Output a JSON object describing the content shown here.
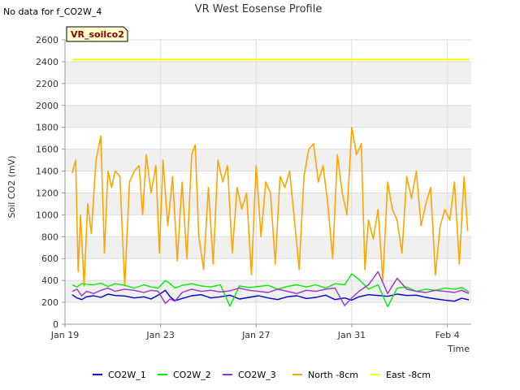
{
  "chart_data": {
    "type": "line",
    "title": "VR West Eosense Profile",
    "no_data_note": "No data for f_CO2W_4",
    "badge": "VR_soilco2",
    "xlabel": "Time",
    "ylabel": "Soil CO2 (mV)",
    "x_ticks": [
      "Jan 19",
      "Jan 23",
      "Jan 27",
      "Jan 31",
      "Feb 4"
    ],
    "x_tick_values": [
      19,
      23,
      27,
      31,
      35
    ],
    "xlim": [
      19.0,
      36.0
    ],
    "y_ticks": [
      0,
      200,
      400,
      600,
      800,
      1000,
      1200,
      1400,
      1600,
      1800,
      2000,
      2200,
      2400,
      2600
    ],
    "ylim": [
      0,
      2600
    ],
    "grid": true,
    "background_bands": "alternating grey / white",
    "legend_position": "bottom",
    "series": [
      {
        "name": "CO2W_1",
        "color": "#0000cc",
        "x": [
          19.3,
          19.5,
          19.7,
          19.9,
          20.2,
          20.5,
          20.8,
          21.1,
          21.5,
          21.9,
          22.3,
          22.6,
          22.9,
          23.2,
          23.4,
          23.6,
          23.9,
          24.3,
          24.7,
          25.1,
          25.5,
          25.9,
          26.3,
          26.7,
          27.1,
          27.5,
          27.9,
          28.3,
          28.7,
          29.1,
          29.5,
          29.9,
          30.3,
          30.7,
          31.0,
          31.3,
          31.7,
          32.1,
          32.5,
          32.9,
          33.3,
          33.7,
          34.1,
          34.5,
          34.9,
          35.3,
          35.6,
          35.9
        ],
        "y": [
          270,
          240,
          225,
          250,
          260,
          245,
          275,
          262,
          258,
          240,
          250,
          230,
          265,
          310,
          250,
          215,
          235,
          260,
          270,
          240,
          250,
          265,
          230,
          245,
          260,
          240,
          225,
          250,
          260,
          235,
          245,
          265,
          225,
          240,
          220,
          250,
          270,
          262,
          255,
          275,
          262,
          265,
          245,
          232,
          220,
          210,
          238,
          222
        ]
      },
      {
        "name": "CO2W_2",
        "color": "#00ee00",
        "x": [
          19.3,
          19.5,
          19.7,
          19.9,
          20.2,
          20.5,
          20.8,
          21.1,
          21.5,
          21.9,
          22.3,
          22.6,
          22.9,
          23.2,
          23.4,
          23.6,
          23.9,
          24.3,
          24.7,
          25.1,
          25.5,
          25.9,
          26.3,
          26.7,
          27.1,
          27.5,
          27.9,
          28.3,
          28.7,
          29.1,
          29.5,
          29.9,
          30.3,
          30.7,
          31.0,
          31.3,
          31.7,
          32.1,
          32.5,
          32.9,
          33.3,
          33.7,
          34.1,
          34.5,
          34.9,
          35.3,
          35.6,
          35.9
        ],
        "y": [
          360,
          340,
          370,
          365,
          360,
          375,
          345,
          370,
          355,
          330,
          360,
          340,
          330,
          400,
          370,
          330,
          355,
          370,
          350,
          340,
          360,
          165,
          350,
          335,
          345,
          355,
          320,
          345,
          360,
          340,
          360,
          330,
          370,
          360,
          460,
          410,
          320,
          360,
          160,
          330,
          340,
          300,
          320,
          310,
          330,
          320,
          335,
          295
        ]
      },
      {
        "name": "CO2W_3",
        "color": "#9933cc",
        "x": [
          19.3,
          19.5,
          19.7,
          19.9,
          20.2,
          20.5,
          20.8,
          21.1,
          21.5,
          21.9,
          22.3,
          22.6,
          22.9,
          23.2,
          23.4,
          23.6,
          23.9,
          24.3,
          24.7,
          25.1,
          25.5,
          25.9,
          26.3,
          26.7,
          27.1,
          27.5,
          27.9,
          28.3,
          28.7,
          29.1,
          29.5,
          29.9,
          30.3,
          30.7,
          31.0,
          31.3,
          31.7,
          32.1,
          32.5,
          32.9,
          33.3,
          33.7,
          34.1,
          34.5,
          34.9,
          35.3,
          35.6,
          35.9
        ],
        "y": [
          300,
          320,
          260,
          300,
          280,
          310,
          330,
          300,
          320,
          310,
          290,
          310,
          300,
          190,
          230,
          210,
          290,
          320,
          300,
          310,
          295,
          305,
          330,
          310,
          300,
          290,
          320,
          300,
          280,
          310,
          300,
          320,
          330,
          170,
          240,
          300,
          360,
          480,
          280,
          420,
          320,
          300,
          290,
          310,
          300,
          290,
          310,
          280
        ]
      },
      {
        "name": "North -8cm",
        "color": "#ffa500",
        "x": [
          19.3,
          19.45,
          19.55,
          19.65,
          19.8,
          19.95,
          20.1,
          20.3,
          20.5,
          20.65,
          20.8,
          20.95,
          21.1,
          21.3,
          21.5,
          21.7,
          21.9,
          22.1,
          22.25,
          22.4,
          22.6,
          22.8,
          22.95,
          23.1,
          23.3,
          23.5,
          23.7,
          23.9,
          24.1,
          24.3,
          24.45,
          24.6,
          24.8,
          25.0,
          25.2,
          25.4,
          25.6,
          25.8,
          26.0,
          26.2,
          26.4,
          26.6,
          26.8,
          27.0,
          27.2,
          27.4,
          27.6,
          27.8,
          28.0,
          28.2,
          28.4,
          28.6,
          28.8,
          29.0,
          29.2,
          29.4,
          29.6,
          29.8,
          30.0,
          30.2,
          30.4,
          30.6,
          30.8,
          31.0,
          31.2,
          31.4,
          31.55,
          31.7,
          31.9,
          32.1,
          32.3,
          32.5,
          32.7,
          32.9,
          33.1,
          33.3,
          33.5,
          33.7,
          33.9,
          34.1,
          34.3,
          34.5,
          34.7,
          34.9,
          35.1,
          35.3,
          35.5,
          35.7,
          35.85
        ],
        "y": [
          1380,
          1500,
          480,
          1000,
          350,
          1100,
          830,
          1500,
          1720,
          650,
          1400,
          1250,
          1400,
          1350,
          350,
          1300,
          1400,
          1450,
          1000,
          1550,
          1200,
          1450,
          650,
          1500,
          900,
          1350,
          580,
          1300,
          600,
          1550,
          1640,
          800,
          500,
          1250,
          550,
          1500,
          1300,
          1450,
          650,
          1250,
          1050,
          1200,
          450,
          1450,
          800,
          1300,
          1200,
          550,
          1350,
          1250,
          1400,
          950,
          500,
          1350,
          1600,
          1650,
          1300,
          1450,
          1100,
          600,
          1550,
          1200,
          1000,
          1800,
          1550,
          1650,
          500,
          950,
          780,
          1050,
          400,
          1300,
          1050,
          950,
          650,
          1350,
          1150,
          1400,
          900,
          1100,
          1250,
          450,
          900,
          1050,
          950,
          1300,
          550,
          1350,
          850
        ]
      },
      {
        "name": "East -8cm",
        "color": "#ffff00",
        "x": [
          19.3,
          35.9
        ],
        "y": [
          2420,
          2420
        ]
      }
    ]
  }
}
